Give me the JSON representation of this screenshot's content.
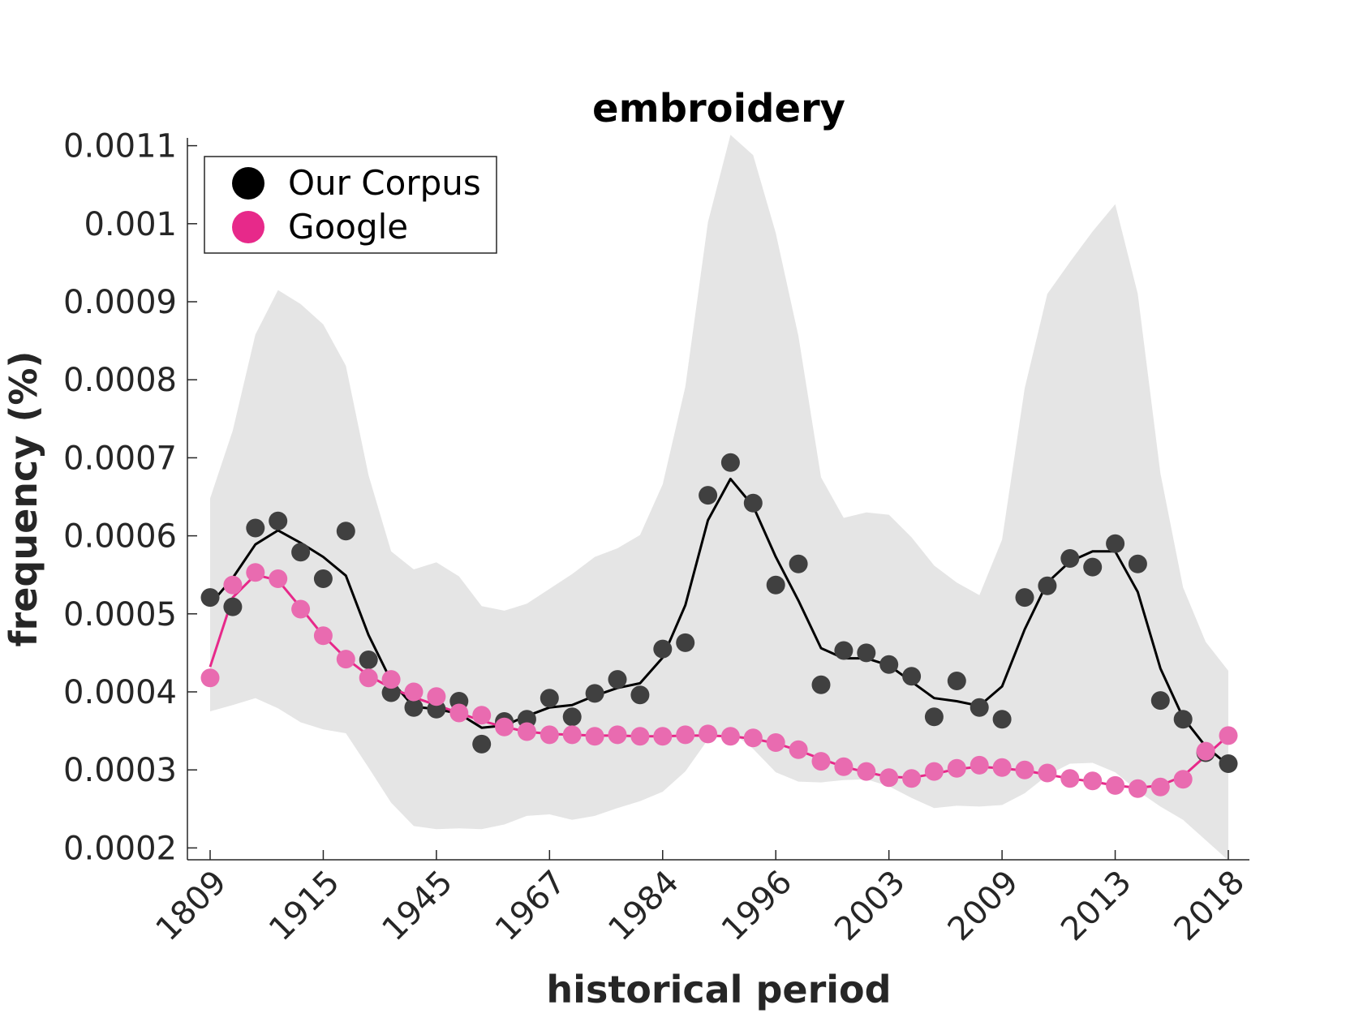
{
  "chart_data": {
    "type": "scatter",
    "title": "embroidery",
    "xlabel": "historical period",
    "ylabel": "frequency (%)",
    "x_tick_labels": [
      "1809",
      "1915",
      "1945",
      "1967",
      "1984",
      "1996",
      "2003",
      "2009",
      "2013",
      "2018"
    ],
    "y_tick_labels": [
      "0.0002",
      "0.0003",
      "0.0004",
      "0.0005",
      "0.0006",
      "0.0007",
      "0.0008",
      "0.0009",
      "0.001",
      "0.0011"
    ],
    "y_ticks": [
      0.0002,
      0.0003,
      0.0004,
      0.0005,
      0.0006,
      0.0007,
      0.0008,
      0.0009,
      0.001,
      0.0011
    ],
    "ylim": [
      0.00019,
      0.00111
    ],
    "grid": false,
    "legend_position": "top-left",
    "band": {
      "color": "#e5e5e5",
      "upper": [
        0.000648,
        0.000735,
        0.000858,
        0.000915,
        0.000897,
        0.000871,
        0.000818,
        0.000678,
        0.00058,
        0.000557,
        0.000566,
        0.000548,
        0.00051,
        0.000504,
        0.000513,
        0.000532,
        0.000551,
        0.000573,
        0.000584,
        0.000601,
        0.000666,
        0.000791,
        0.001002,
        0.001114,
        0.001088,
        0.000988,
        0.000856,
        0.000675,
        0.000623,
        0.00063,
        0.000627,
        0.000598,
        0.000562,
        0.00054,
        0.000524,
        0.000595,
        0.000789,
        0.00091,
        0.000951,
        0.00099,
        0.001025,
        0.00091,
        0.00068,
        0.000534,
        0.000464,
        0.000427
      ],
      "lower": [
        0.000375,
        0.000383,
        0.000392,
        0.000379,
        0.000361,
        0.000352,
        0.000347,
        0.000303,
        0.000258,
        0.000228,
        0.000224,
        0.000225,
        0.000224,
        0.00023,
        0.000241,
        0.000243,
        0.000236,
        0.000241,
        0.000251,
        0.00026,
        0.000272,
        0.000298,
        0.000339,
        0.00035,
        0.000327,
        0.000297,
        0.000285,
        0.000284,
        0.000287,
        0.000288,
        0.000279,
        0.000264,
        0.000251,
        0.000254,
        0.000253,
        0.000255,
        0.00027,
        0.000293,
        0.000308,
        0.000309,
        0.000297,
        0.000273,
        0.000253,
        0.000236,
        0.00021,
        0.000184
      ]
    },
    "series": [
      {
        "name": "Our Corpus",
        "color": "#000000",
        "point_color": "#404040",
        "points": [
          0.000521,
          0.000509,
          0.00061,
          0.000619,
          0.000579,
          0.000545,
          0.000606,
          0.000441,
          0.000399,
          0.00038,
          0.000378,
          0.000388,
          0.000333,
          0.000362,
          0.000365,
          0.000392,
          0.000368,
          0.000398,
          0.000416,
          0.000396,
          0.000455,
          0.000463,
          0.000652,
          0.000694,
          0.000642,
          0.000537,
          0.000564,
          0.000409,
          0.000453,
          0.00045,
          0.000435,
          0.00042,
          0.000368,
          0.000414,
          0.00038,
          0.000365,
          0.000521,
          0.000536,
          0.000571,
          0.00056,
          0.00059,
          0.000564,
          0.000389,
          0.000365,
          0.000322,
          0.000308
        ],
        "trend": [
          0.000512,
          0.000546,
          0.000589,
          0.000607,
          0.000591,
          0.000573,
          0.000549,
          0.000473,
          0.000414,
          0.000381,
          0.000378,
          0.000372,
          0.000354,
          0.000357,
          0.000369,
          0.00038,
          0.000383,
          0.000395,
          0.000405,
          0.000411,
          0.000444,
          0.000511,
          0.00062,
          0.000673,
          0.000638,
          0.000573,
          0.000517,
          0.000456,
          0.000443,
          0.000443,
          0.000434,
          0.000413,
          0.000392,
          0.000388,
          0.000382,
          0.000407,
          0.00048,
          0.00054,
          0.000567,
          0.00058,
          0.00058,
          0.000528,
          0.00043,
          0.000367,
          0.00033,
          0.000306
        ]
      },
      {
        "name": "Google",
        "color": "#e7298a",
        "point_color": "#e96bb0",
        "points": [
          0.000418,
          0.000537,
          0.000553,
          0.000545,
          0.000506,
          0.000472,
          0.000442,
          0.000418,
          0.000416,
          0.0004,
          0.000394,
          0.000373,
          0.00037,
          0.000355,
          0.000349,
          0.000345,
          0.000345,
          0.000343,
          0.000345,
          0.000343,
          0.000343,
          0.000345,
          0.000346,
          0.000343,
          0.000341,
          0.000335,
          0.000326,
          0.000311,
          0.000304,
          0.000298,
          0.00029,
          0.000289,
          0.000298,
          0.000302,
          0.000306,
          0.000303,
          0.0003,
          0.000296,
          0.000289,
          0.000286,
          0.00028,
          0.000276,
          0.000278,
          0.000288,
          0.000324,
          0.000344
        ],
        "trend": [
          0.000432,
          0.000521,
          0.00055,
          0.000543,
          0.000508,
          0.000472,
          0.000443,
          0.000421,
          0.000405,
          0.000393,
          0.000383,
          0.000373,
          0.000363,
          0.000355,
          0.000349,
          0.000346,
          0.000345,
          0.000344,
          0.000344,
          0.000343,
          0.000343,
          0.000344,
          0.000344,
          0.000343,
          0.00034,
          0.000334,
          0.000325,
          0.000314,
          0.000304,
          0.000297,
          0.000291,
          0.00029,
          0.000295,
          0.000301,
          0.000304,
          0.000302,
          0.000299,
          0.000294,
          0.000289,
          0.000285,
          0.00028,
          0.000277,
          0.00028,
          0.000292,
          0.000318,
          0.000344
        ]
      }
    ]
  }
}
